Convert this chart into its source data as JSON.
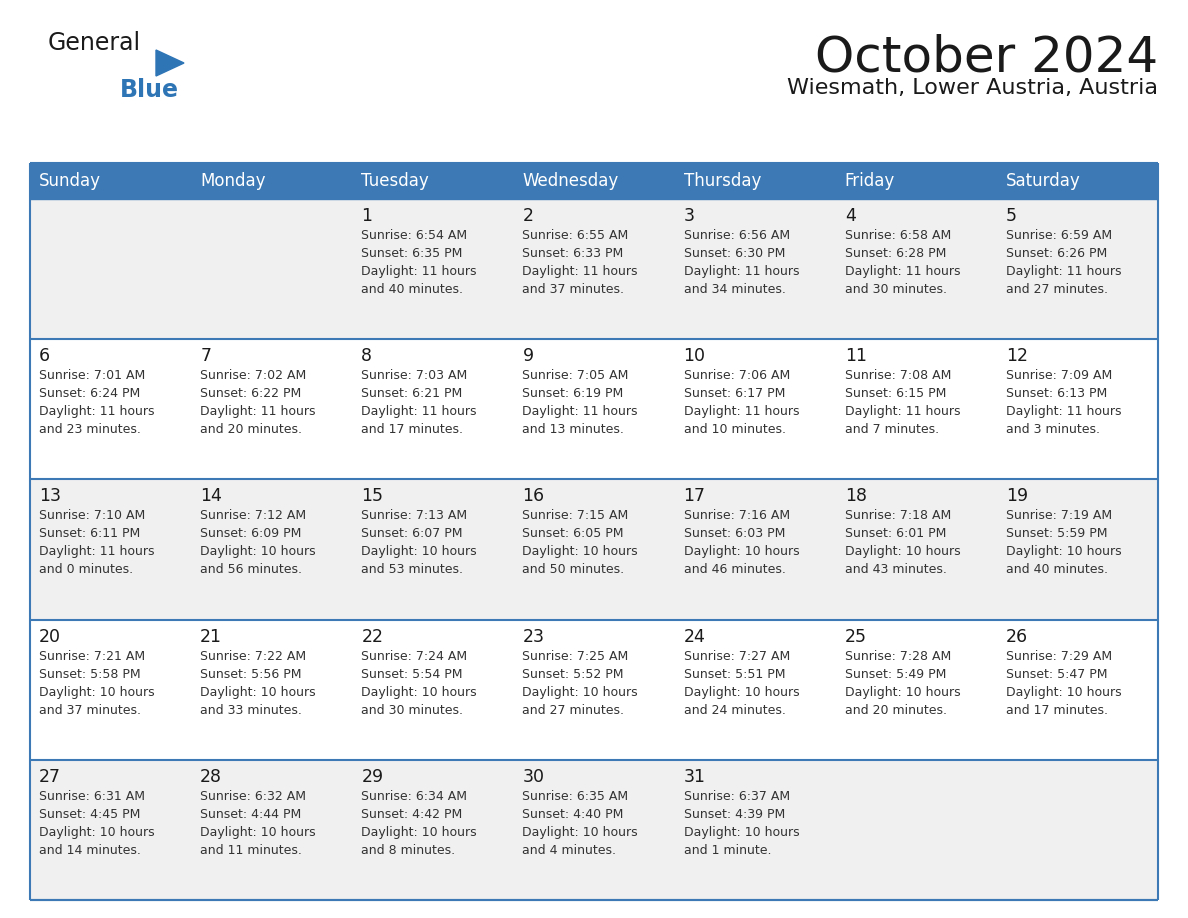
{
  "title": "October 2024",
  "subtitle": "Wiesmath, Lower Austria, Austria",
  "days_of_week": [
    "Sunday",
    "Monday",
    "Tuesday",
    "Wednesday",
    "Thursday",
    "Friday",
    "Saturday"
  ],
  "header_bg": "#3D7AB5",
  "header_text": "#FFFFFF",
  "cell_bg_light": "#F0F0F0",
  "cell_bg_white": "#FFFFFF",
  "cell_text": "#333333",
  "grid_color": "#3D7AB5",
  "title_color": "#1a1a1a",
  "subtitle_color": "#1a1a1a",
  "logo_text_color": "#1a1a1a",
  "logo_blue_color": "#2E75B6",
  "calendar_data": [
    [
      {
        "day": "",
        "lines": []
      },
      {
        "day": "",
        "lines": []
      },
      {
        "day": "1",
        "lines": [
          "Sunrise: 6:54 AM",
          "Sunset: 6:35 PM",
          "Daylight: 11 hours",
          "and 40 minutes."
        ]
      },
      {
        "day": "2",
        "lines": [
          "Sunrise: 6:55 AM",
          "Sunset: 6:33 PM",
          "Daylight: 11 hours",
          "and 37 minutes."
        ]
      },
      {
        "day": "3",
        "lines": [
          "Sunrise: 6:56 AM",
          "Sunset: 6:30 PM",
          "Daylight: 11 hours",
          "and 34 minutes."
        ]
      },
      {
        "day": "4",
        "lines": [
          "Sunrise: 6:58 AM",
          "Sunset: 6:28 PM",
          "Daylight: 11 hours",
          "and 30 minutes."
        ]
      },
      {
        "day": "5",
        "lines": [
          "Sunrise: 6:59 AM",
          "Sunset: 6:26 PM",
          "Daylight: 11 hours",
          "and 27 minutes."
        ]
      }
    ],
    [
      {
        "day": "6",
        "lines": [
          "Sunrise: 7:01 AM",
          "Sunset: 6:24 PM",
          "Daylight: 11 hours",
          "and 23 minutes."
        ]
      },
      {
        "day": "7",
        "lines": [
          "Sunrise: 7:02 AM",
          "Sunset: 6:22 PM",
          "Daylight: 11 hours",
          "and 20 minutes."
        ]
      },
      {
        "day": "8",
        "lines": [
          "Sunrise: 7:03 AM",
          "Sunset: 6:21 PM",
          "Daylight: 11 hours",
          "and 17 minutes."
        ]
      },
      {
        "day": "9",
        "lines": [
          "Sunrise: 7:05 AM",
          "Sunset: 6:19 PM",
          "Daylight: 11 hours",
          "and 13 minutes."
        ]
      },
      {
        "day": "10",
        "lines": [
          "Sunrise: 7:06 AM",
          "Sunset: 6:17 PM",
          "Daylight: 11 hours",
          "and 10 minutes."
        ]
      },
      {
        "day": "11",
        "lines": [
          "Sunrise: 7:08 AM",
          "Sunset: 6:15 PM",
          "Daylight: 11 hours",
          "and 7 minutes."
        ]
      },
      {
        "day": "12",
        "lines": [
          "Sunrise: 7:09 AM",
          "Sunset: 6:13 PM",
          "Daylight: 11 hours",
          "and 3 minutes."
        ]
      }
    ],
    [
      {
        "day": "13",
        "lines": [
          "Sunrise: 7:10 AM",
          "Sunset: 6:11 PM",
          "Daylight: 11 hours",
          "and 0 minutes."
        ]
      },
      {
        "day": "14",
        "lines": [
          "Sunrise: 7:12 AM",
          "Sunset: 6:09 PM",
          "Daylight: 10 hours",
          "and 56 minutes."
        ]
      },
      {
        "day": "15",
        "lines": [
          "Sunrise: 7:13 AM",
          "Sunset: 6:07 PM",
          "Daylight: 10 hours",
          "and 53 minutes."
        ]
      },
      {
        "day": "16",
        "lines": [
          "Sunrise: 7:15 AM",
          "Sunset: 6:05 PM",
          "Daylight: 10 hours",
          "and 50 minutes."
        ]
      },
      {
        "day": "17",
        "lines": [
          "Sunrise: 7:16 AM",
          "Sunset: 6:03 PM",
          "Daylight: 10 hours",
          "and 46 minutes."
        ]
      },
      {
        "day": "18",
        "lines": [
          "Sunrise: 7:18 AM",
          "Sunset: 6:01 PM",
          "Daylight: 10 hours",
          "and 43 minutes."
        ]
      },
      {
        "day": "19",
        "lines": [
          "Sunrise: 7:19 AM",
          "Sunset: 5:59 PM",
          "Daylight: 10 hours",
          "and 40 minutes."
        ]
      }
    ],
    [
      {
        "day": "20",
        "lines": [
          "Sunrise: 7:21 AM",
          "Sunset: 5:58 PM",
          "Daylight: 10 hours",
          "and 37 minutes."
        ]
      },
      {
        "day": "21",
        "lines": [
          "Sunrise: 7:22 AM",
          "Sunset: 5:56 PM",
          "Daylight: 10 hours",
          "and 33 minutes."
        ]
      },
      {
        "day": "22",
        "lines": [
          "Sunrise: 7:24 AM",
          "Sunset: 5:54 PM",
          "Daylight: 10 hours",
          "and 30 minutes."
        ]
      },
      {
        "day": "23",
        "lines": [
          "Sunrise: 7:25 AM",
          "Sunset: 5:52 PM",
          "Daylight: 10 hours",
          "and 27 minutes."
        ]
      },
      {
        "day": "24",
        "lines": [
          "Sunrise: 7:27 AM",
          "Sunset: 5:51 PM",
          "Daylight: 10 hours",
          "and 24 minutes."
        ]
      },
      {
        "day": "25",
        "lines": [
          "Sunrise: 7:28 AM",
          "Sunset: 5:49 PM",
          "Daylight: 10 hours",
          "and 20 minutes."
        ]
      },
      {
        "day": "26",
        "lines": [
          "Sunrise: 7:29 AM",
          "Sunset: 5:47 PM",
          "Daylight: 10 hours",
          "and 17 minutes."
        ]
      }
    ],
    [
      {
        "day": "27",
        "lines": [
          "Sunrise: 6:31 AM",
          "Sunset: 4:45 PM",
          "Daylight: 10 hours",
          "and 14 minutes."
        ]
      },
      {
        "day": "28",
        "lines": [
          "Sunrise: 6:32 AM",
          "Sunset: 4:44 PM",
          "Daylight: 10 hours",
          "and 11 minutes."
        ]
      },
      {
        "day": "29",
        "lines": [
          "Sunrise: 6:34 AM",
          "Sunset: 4:42 PM",
          "Daylight: 10 hours",
          "and 8 minutes."
        ]
      },
      {
        "day": "30",
        "lines": [
          "Sunrise: 6:35 AM",
          "Sunset: 4:40 PM",
          "Daylight: 10 hours",
          "and 4 minutes."
        ]
      },
      {
        "day": "31",
        "lines": [
          "Sunrise: 6:37 AM",
          "Sunset: 4:39 PM",
          "Daylight: 10 hours",
          "and 1 minute."
        ]
      },
      {
        "day": "",
        "lines": []
      },
      {
        "day": "",
        "lines": []
      }
    ]
  ]
}
